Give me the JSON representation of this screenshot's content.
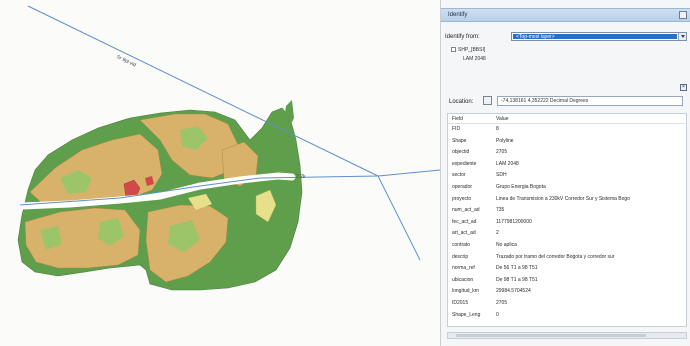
{
  "map": {
    "road_label_top": "Sr 9pl vid",
    "road_label_middle": "2.2k",
    "colors": {
      "forest": "#5f9e4a",
      "crop": "#d8b26a",
      "grass": "#9cc569",
      "light": "#e6e08a",
      "urban": "#d14a4a",
      "line": "#5e8fcc"
    }
  },
  "identify": {
    "title": "Identify",
    "identify_from_label": "Identify from:",
    "identify_from_value": "<Top-most layer>",
    "tree": {
      "layer": "SHP_[BBSI]",
      "feature": "LAM 2048"
    },
    "location_label": "Location:",
    "location_value": "-74,138161 4,352222 Decimal Degrees",
    "columns": [
      "Field",
      "Value"
    ],
    "fields": [
      {
        "field": "FID",
        "value": "8"
      },
      {
        "field": "Shape",
        "value": "Polyline"
      },
      {
        "field": "objectid",
        "value": "2705"
      },
      {
        "field": "expediente",
        "value": "LAM 2048"
      },
      {
        "field": "sector",
        "value": "SDH"
      },
      {
        "field": "operador",
        "value": "Grupo Energia Bogota"
      },
      {
        "field": "proyecto",
        "value": "Linea de Transmision a 230kV Corredor Sur y Sistema Bogo"
      },
      {
        "field": "num_act_ad",
        "value": "735"
      },
      {
        "field": "fec_act_ad",
        "value": "1177981200000"
      },
      {
        "field": "art_act_ad",
        "value": "2"
      },
      {
        "field": "contrato",
        "value": "No aplica"
      },
      {
        "field": "descrip",
        "value": "Trazado por tramo del corredor Bogota y corredor sur"
      },
      {
        "field": "norma_ref",
        "value": "De 56 T1 a 98 T51"
      },
      {
        "field": "ubicacion",
        "value": "De 98 T1 a 98 T51"
      },
      {
        "field": "longitud_km",
        "value": "29984.5704524"
      },
      {
        "field": "ID2015",
        "value": "2705"
      },
      {
        "field": "Shape_Leng",
        "value": "0"
      }
    ]
  }
}
